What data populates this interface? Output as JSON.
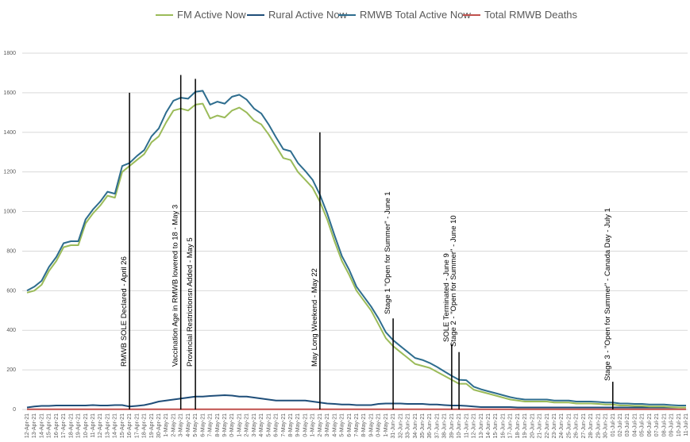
{
  "chart_data": {
    "type": "line",
    "title": "",
    "xlabel": "",
    "ylabel": "",
    "ylim": [
      0,
      1800
    ],
    "yticks": [
      "0",
      "200",
      "400",
      "600",
      "800",
      "1000",
      "1200",
      "1400",
      "1600",
      "1800"
    ],
    "grid": "horizontal",
    "legend_position": "top",
    "categories": [
      "12-Apr-21",
      "13-Apr-21",
      "14-Apr-21",
      "15-Apr-21",
      "16-Apr-21",
      "17-Apr-21",
      "18-Apr-21",
      "19-Apr-21",
      "10-Apr-21",
      "11-Apr-21",
      "12-Apr-21",
      "13-Apr-21",
      "14-Apr-21",
      "15-Apr-21",
      "16-Apr-21",
      "17-Apr-21",
      "18-Apr-21",
      "19-Apr-21",
      "30-Apr-21",
      "1-May-21",
      "2-May-21",
      "3-May-21",
      "4-May-21",
      "5-May-21",
      "6-May-21",
      "7-May-21",
      "8-May-21",
      "9-May-21",
      "0-May-21",
      "1-May-21",
      "2-May-21",
      "3-May-21",
      "4-May-21",
      "5-May-21",
      "6-May-21",
      "7-May-21",
      "8-May-21",
      "9-May-21",
      "0-May-21",
      "1-May-21",
      "2-May-21",
      "3-May-21",
      "4-May-21",
      "5-May-21",
      "6-May-21",
      "7-May-21",
      "8-May-21",
      "9-May-21",
      "0-May-21",
      "1-May-21",
      "31-Jun-21",
      "32-Jun-21",
      "33-Jun-21",
      "34-Jun-21",
      "35-Jun-21",
      "36-Jun-21",
      "37-Jun-21",
      "38-Jun-21",
      "39-Jun-21",
      "10-Jun-21",
      "11-Jun-21",
      "12-Jun-21",
      "13-Jun-21",
      "14-Jun-21",
      "15-Jun-21",
      "16-Jun-21",
      "17-Jun-21",
      "18-Jun-21",
      "19-Jun-21",
      "20-Jun-21",
      "21-Jun-21",
      "22-Jun-21",
      "23-Jun-21",
      "24-Jun-21",
      "25-Jun-21",
      "26-Jun-21",
      "27-Jun-21",
      "28-Jun-21",
      "29-Jun-21",
      "30-Jun-21",
      "01-Jul-21",
      "02-Jul-21",
      "03-Jul-21",
      "04-Jul-21",
      "05-Jul-21",
      "06-Jul-21",
      "07-Jul-21",
      "08-Jul-21",
      "09-Jul-21",
      "10-Jul-21",
      "11-Jul-21"
    ],
    "series": [
      {
        "name": "FM Active Now",
        "color": "#9bbb59",
        "values": [
          590,
          600,
          630,
          700,
          750,
          820,
          830,
          830,
          940,
          990,
          1030,
          1080,
          1070,
          1200,
          1230,
          1260,
          1290,
          1350,
          1380,
          1450,
          1510,
          1520,
          1510,
          1540,
          1545,
          1470,
          1485,
          1475,
          1510,
          1525,
          1500,
          1460,
          1440,
          1390,
          1330,
          1270,
          1260,
          1200,
          1160,
          1120,
          1050,
          960,
          850,
          750,
          680,
          600,
          550,
          500,
          430,
          360,
          320,
          290,
          260,
          230,
          220,
          210,
          190,
          170,
          150,
          130,
          130,
          100,
          90,
          80,
          70,
          60,
          50,
          45,
          40,
          40,
          40,
          40,
          35,
          35,
          35,
          30,
          30,
          30,
          28,
          25,
          25,
          20,
          20,
          18,
          18,
          15,
          15,
          15,
          12,
          10,
          10
        ]
      },
      {
        "name": "Rural Active Now",
        "color": "#1f4e79",
        "values": [
          10,
          15,
          18,
          18,
          20,
          20,
          20,
          20,
          20,
          22,
          20,
          20,
          22,
          22,
          15,
          18,
          22,
          30,
          40,
          45,
          50,
          55,
          60,
          65,
          65,
          68,
          70,
          72,
          70,
          65,
          65,
          60,
          55,
          50,
          45,
          45,
          45,
          45,
          45,
          40,
          35,
          30,
          28,
          25,
          25,
          22,
          22,
          22,
          28,
          30,
          30,
          30,
          28,
          28,
          28,
          25,
          25,
          22,
          20,
          20,
          18,
          15,
          12,
          12,
          12,
          12,
          12,
          10,
          10,
          10,
          10,
          10,
          10,
          10,
          10,
          10,
          10,
          10,
          10,
          10,
          10,
          10,
          10,
          10,
          10,
          10,
          10,
          10,
          10,
          10,
          10
        ]
      },
      {
        "name": "RMWB Total Active Now",
        "color": "#2e6d8e",
        "values": [
          600,
          620,
          650,
          720,
          770,
          840,
          850,
          850,
          960,
          1010,
          1050,
          1100,
          1090,
          1230,
          1245,
          1280,
          1310,
          1380,
          1420,
          1500,
          1560,
          1575,
          1570,
          1605,
          1610,
          1540,
          1555,
          1545,
          1580,
          1590,
          1565,
          1520,
          1495,
          1440,
          1375,
          1315,
          1305,
          1245,
          1205,
          1160,
          1085,
          990,
          880,
          775,
          705,
          620,
          570,
          520,
          460,
          390,
          350,
          320,
          290,
          260,
          250,
          235,
          215,
          192,
          170,
          150,
          148,
          115,
          102,
          92,
          82,
          72,
          62,
          55,
          50,
          50,
          50,
          50,
          45,
          45,
          45,
          40,
          40,
          40,
          38,
          35,
          35,
          30,
          30,
          28,
          28,
          25,
          25,
          25,
          22,
          20,
          20
        ]
      },
      {
        "name": "Total RMWB Deaths",
        "color": "#c0504d",
        "values": [
          1,
          1,
          1,
          1,
          1,
          1,
          1,
          1,
          1,
          1,
          1,
          1,
          1,
          1,
          1,
          1,
          1,
          1,
          1,
          1,
          1,
          1,
          1,
          1,
          1,
          1,
          1,
          1,
          1,
          1,
          1,
          1,
          1,
          1,
          1,
          1,
          1,
          1,
          1,
          1,
          1,
          1,
          1,
          1,
          1,
          1,
          1,
          1,
          1,
          1,
          1,
          1,
          1,
          1,
          1,
          1,
          1,
          1,
          1,
          1,
          1,
          1,
          1,
          1,
          1,
          1,
          1,
          1,
          1,
          1,
          1,
          1,
          1,
          1,
          1,
          1,
          1,
          1,
          1,
          1,
          1,
          1,
          1,
          1,
          1,
          1,
          1,
          1,
          1,
          1,
          1
        ]
      }
    ],
    "annotations": [
      {
        "text": "RMWB SOLE Declared - April 26",
        "at_index": 14,
        "top_value": 1600
      },
      {
        "text": "Vaccination Age in RMWB lowered to 18 - May 3",
        "at_index": 21,
        "top_value": 1690
      },
      {
        "text": "Provincial Restrictionsn Added - May 5",
        "at_index": 23,
        "top_value": 1670
      },
      {
        "text": "May Long Weekend - May 22",
        "at_index": 40,
        "top_value": 1400
      },
      {
        "text": "Stage 1 \"Open for Summer\" - June 1",
        "at_index": 50,
        "top_value": 460
      },
      {
        "text": "SOLE Terminated - June 9",
        "at_index": 58,
        "top_value": 330
      },
      {
        "text": "Stage 2 - \"Open for Summer\" - June 10",
        "at_index": 59,
        "top_value": 290
      },
      {
        "text": "Stage 3 - \"Open for Summer\" - Canada Day - July 1",
        "at_index": 80,
        "top_value": 140
      }
    ]
  }
}
